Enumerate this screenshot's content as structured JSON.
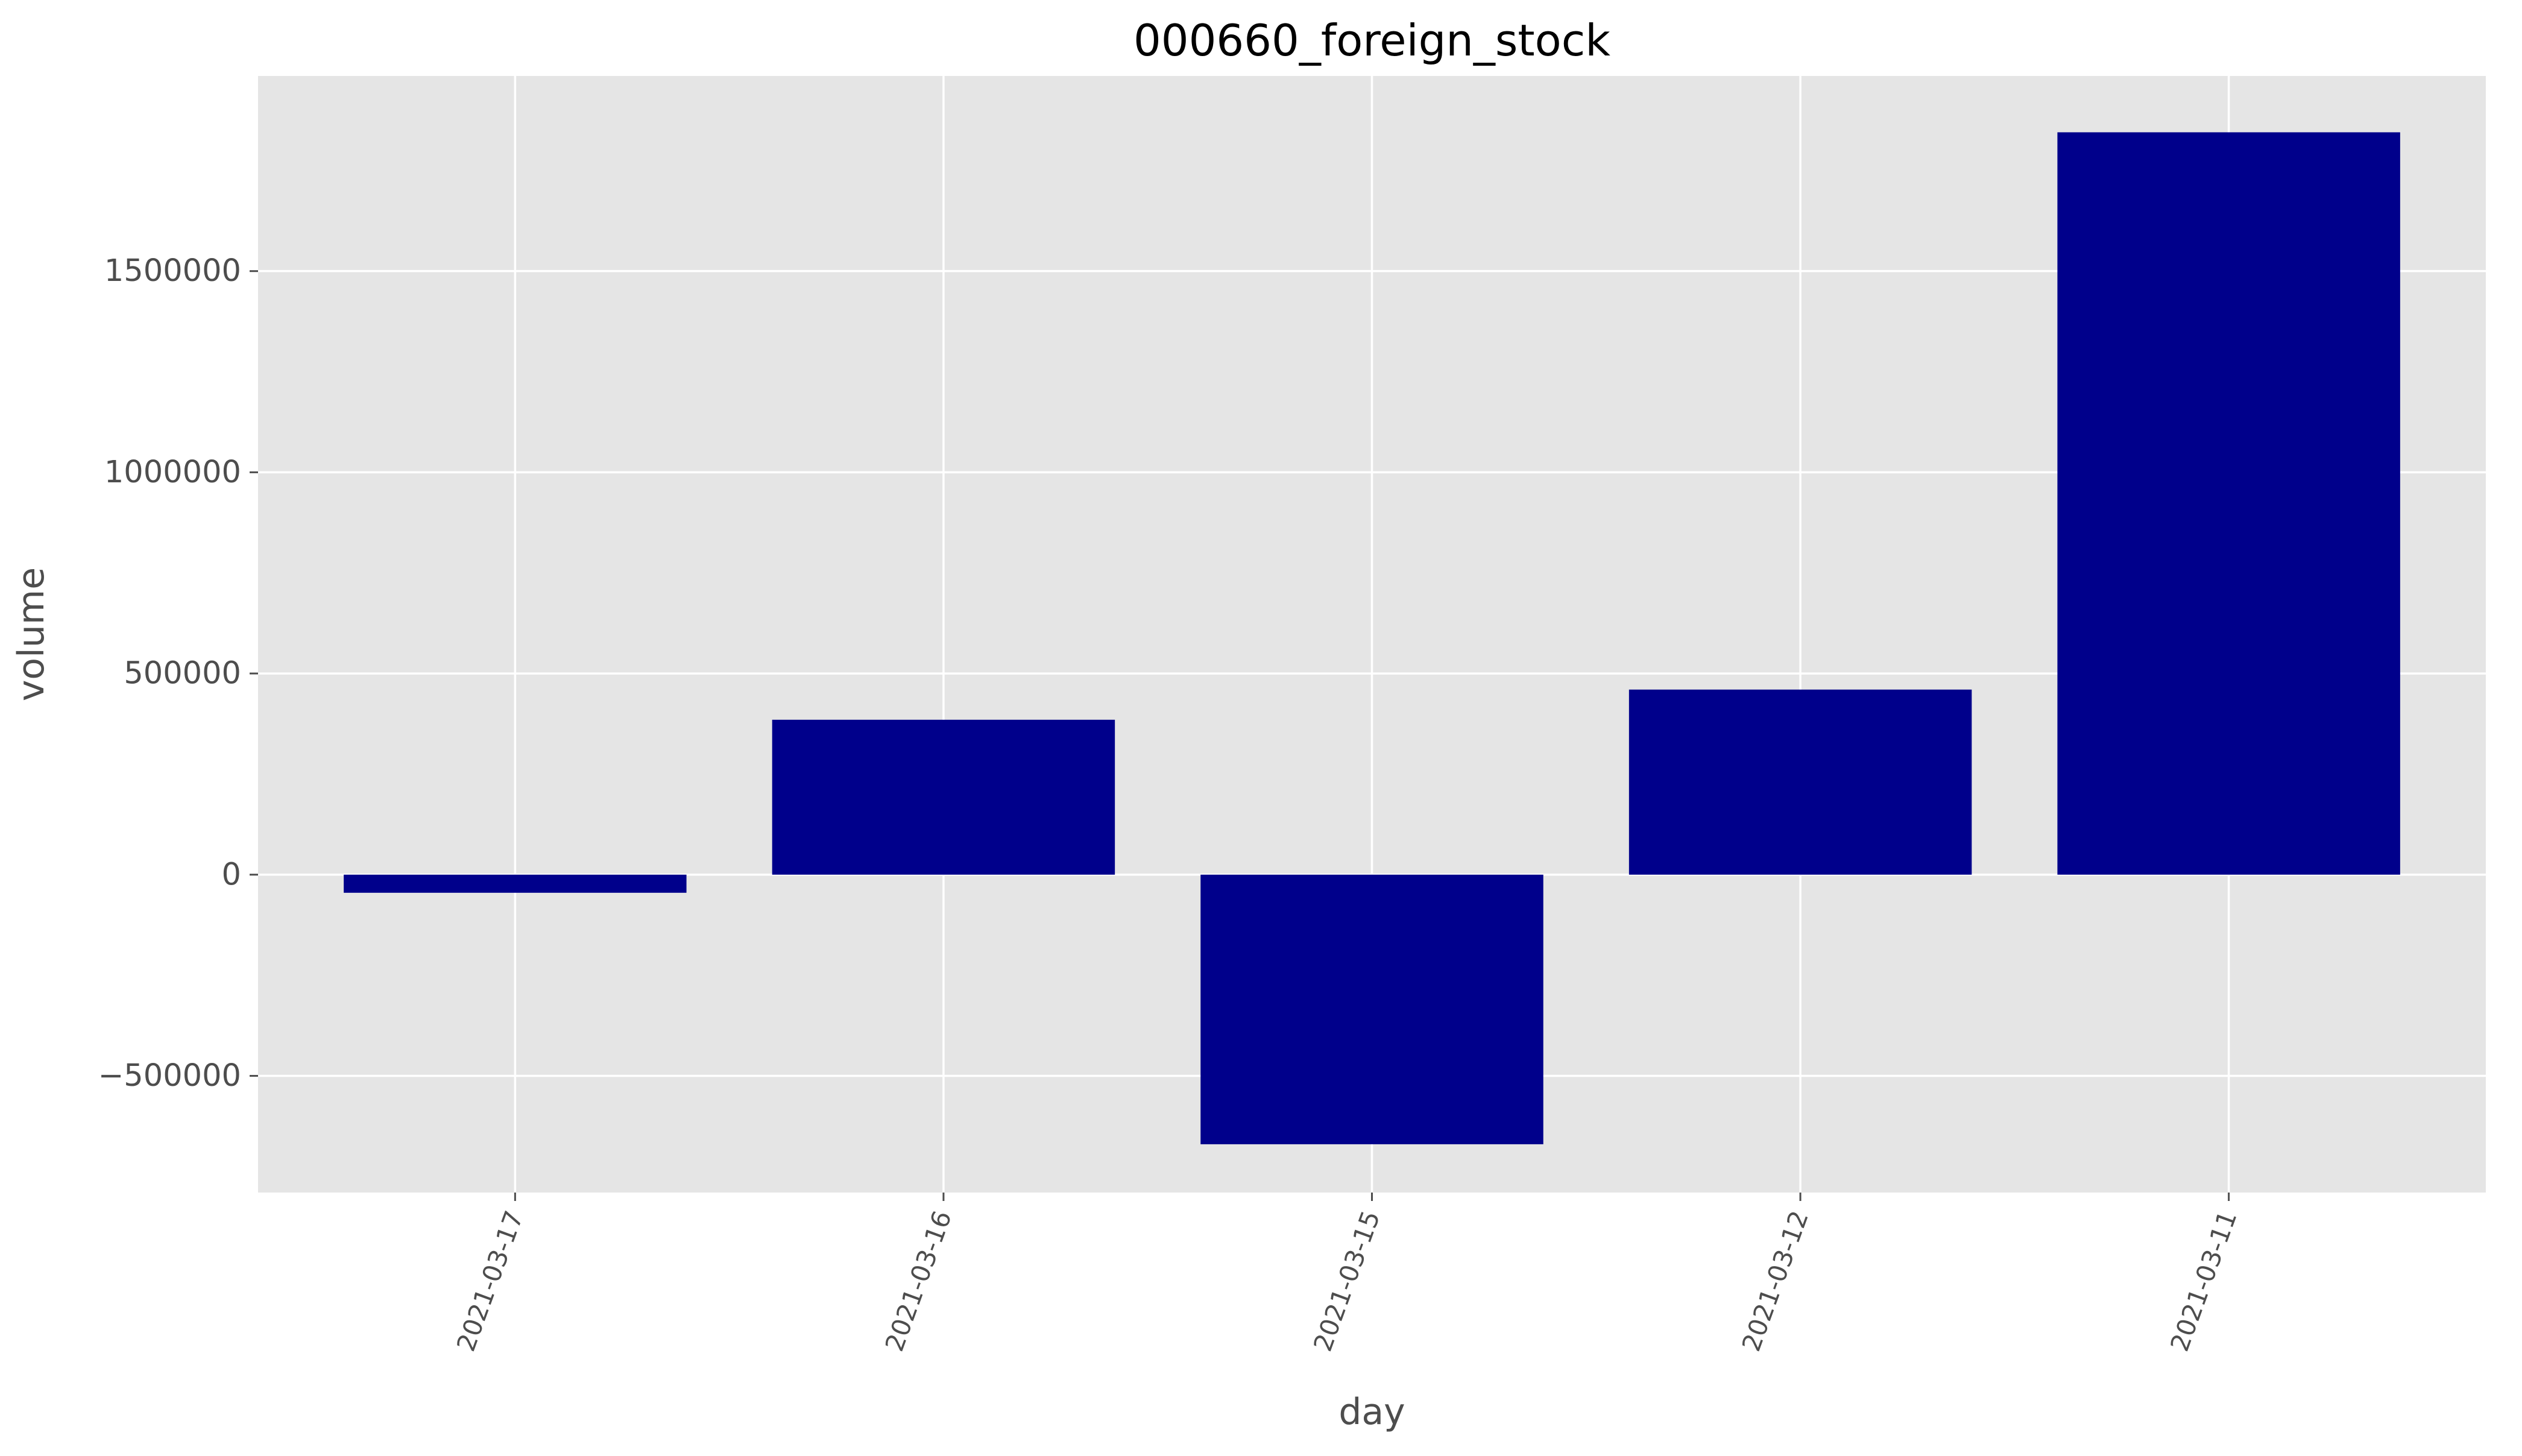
{
  "chart_data": {
    "type": "bar",
    "title": "000660_foreign_stock",
    "xlabel": "day",
    "ylabel": "volume",
    "categories": [
      "2021-03-17",
      "2021-03-16",
      "2021-03-15",
      "2021-03-12",
      "2021-03-11"
    ],
    "values": [
      -45000,
      385000,
      -670000,
      460000,
      1845000
    ],
    "ylim": [
      -790000,
      1985000
    ],
    "yticks": [
      -500000,
      0,
      500000,
      1000000,
      1500000
    ],
    "ytick_labels": [
      "−500000",
      "0",
      "500000",
      "1000000",
      "1500000"
    ],
    "grid": true,
    "bar_color": "#00008b",
    "background_color": "#e5e5e5",
    "grid_color": "#ffffff",
    "xtick_rotation_deg": 70
  }
}
